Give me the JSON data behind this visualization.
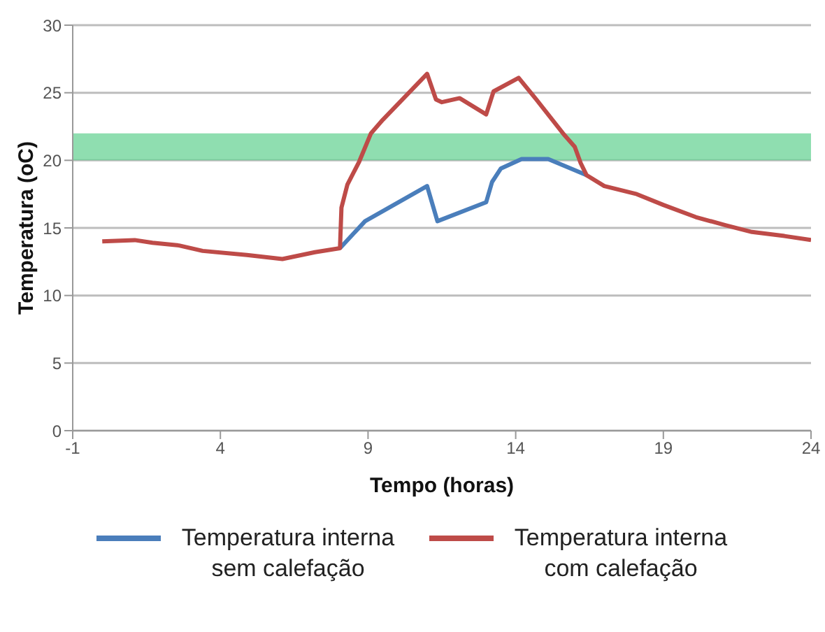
{
  "chart_data": {
    "type": "line",
    "xlabel": "Tempo (horas)",
    "ylabel": "Temperatura (oC)",
    "xlim": [
      -1,
      24
    ],
    "xticks": [
      -1,
      4,
      9,
      14,
      19,
      24
    ],
    "ylim": [
      0,
      30
    ],
    "yticks": [
      0,
      5,
      10,
      15,
      20,
      25,
      30
    ],
    "grid": "y",
    "legend": "bottom",
    "marker": "none",
    "line_style": "solid",
    "bands": [
      {
        "axis": "y",
        "from": 20,
        "to": 22,
        "color": "#5fd08f"
      }
    ],
    "series": [
      {
        "name": "Temperatura interna sem calefação",
        "color": "#4a7ebb",
        "x": [
          8.05,
          8.9,
          11.0,
          11.35,
          13.0,
          13.2,
          13.5,
          14.2,
          15.1,
          16.4
        ],
        "values": [
          13.5,
          15.5,
          18.1,
          15.5,
          16.9,
          18.4,
          19.4,
          20.1,
          20.1,
          18.9
        ]
      },
      {
        "name": "Temperatura interna com calefação",
        "color": "#be4b48",
        "x": [
          0,
          1.1,
          1.7,
          2.6,
          3.4,
          4.9,
          6.1,
          7.2,
          8.05,
          8.1,
          8.3,
          8.7,
          9.1,
          9.5,
          11.0,
          11.3,
          11.5,
          12.1,
          13.0,
          13.25,
          14.1,
          14.7,
          15.6,
          16.0,
          16.2,
          16.4,
          17.0,
          18.1,
          19.0,
          20.1,
          21.1,
          22.0,
          23.1,
          24.0
        ],
        "values": [
          14.0,
          14.1,
          13.9,
          13.7,
          13.3,
          13.0,
          12.7,
          13.2,
          13.5,
          16.5,
          18.2,
          19.9,
          22.0,
          23.0,
          26.4,
          24.5,
          24.3,
          24.6,
          23.4,
          25.1,
          26.1,
          24.5,
          22.0,
          21.0,
          19.8,
          18.9,
          18.1,
          17.5,
          16.7,
          15.8,
          15.2,
          14.7,
          14.4,
          14.1
        ]
      }
    ]
  }
}
